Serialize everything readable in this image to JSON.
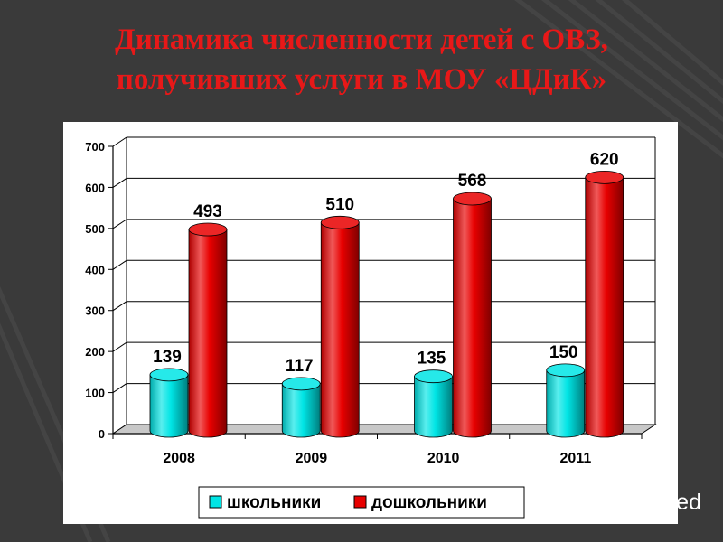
{
  "title": {
    "line1": "Динамика численности детей с ОВЗ,",
    "line2": "получивших услуги в МОУ «ЦДиК»"
  },
  "chart_data": {
    "type": "bar",
    "categories": [
      "2008",
      "2009",
      "2010",
      "2011"
    ],
    "series": [
      {
        "name": "школьники",
        "values": [
          139,
          117,
          135,
          150
        ],
        "color": "#00e5e5"
      },
      {
        "name": "дошкольники",
        "values": [
          493,
          510,
          568,
          620
        ],
        "color": "#e80000"
      }
    ],
    "ylim": [
      0,
      700
    ],
    "yticks": [
      0,
      100,
      200,
      300,
      400,
      500,
      600,
      700
    ],
    "grid": true,
    "legend_position": "bottom",
    "three_d": true
  },
  "watermark": {
    "text": "MyShared",
    "icon": "presentation-board-icon"
  },
  "colors": {
    "background": "#3a3a3a",
    "title": "#e81818"
  }
}
